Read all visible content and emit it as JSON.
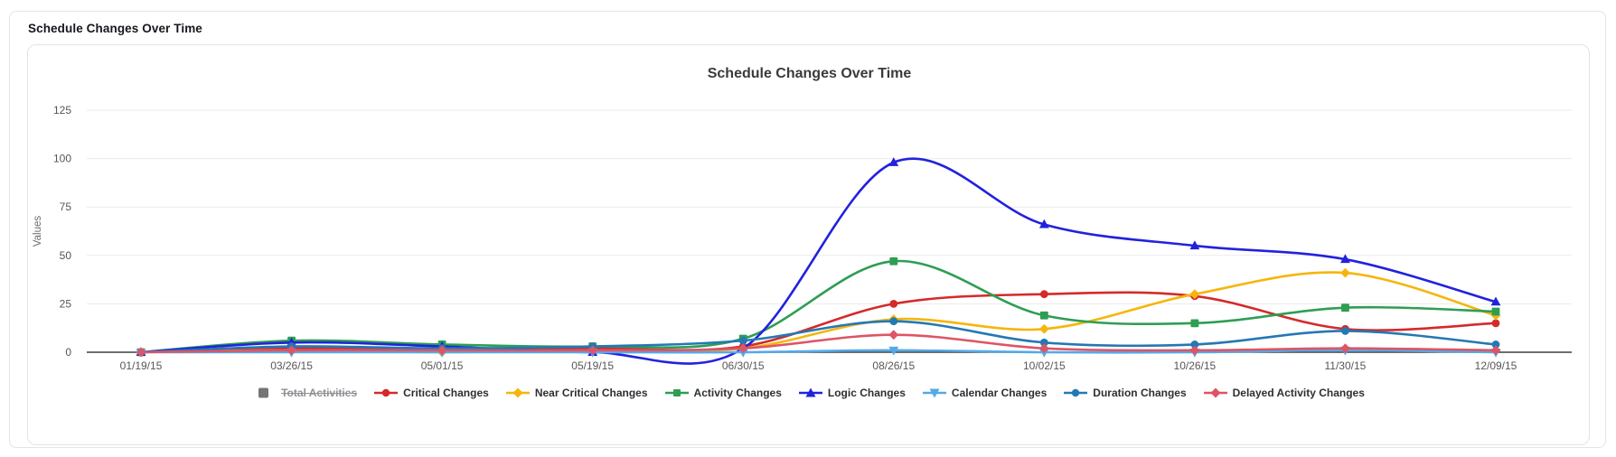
{
  "window": {
    "header_title": "Schedule Changes Over Time"
  },
  "chart_data": {
    "type": "line",
    "title": "Schedule Changes Over Time",
    "xlabel": "",
    "ylabel": "Values",
    "ylim": [
      0,
      125
    ],
    "yticks": [
      0,
      25,
      50,
      75,
      100,
      125
    ],
    "grid": true,
    "legend_position": "bottom",
    "line_style": "smooth",
    "categories": [
      "01/19/15",
      "03/26/15",
      "05/01/15",
      "05/19/15",
      "06/30/15",
      "08/26/15",
      "10/02/15",
      "10/26/15",
      "11/30/15",
      "12/09/15"
    ],
    "series": [
      {
        "name": "Total Activities",
        "color": "#757575",
        "marker": "square",
        "hidden": true,
        "values": []
      },
      {
        "name": "Critical Changes",
        "color": "#d42a2a",
        "marker": "circle",
        "hidden": false,
        "values": [
          0,
          2,
          1,
          2,
          3,
          25,
          30,
          29,
          12,
          15
        ]
      },
      {
        "name": "Near Critical Changes",
        "color": "#f5b60c",
        "marker": "diamond",
        "hidden": false,
        "values": [
          0,
          1,
          0,
          1,
          2,
          17,
          12,
          30,
          41,
          19
        ]
      },
      {
        "name": "Activity Changes",
        "color": "#2e9e53",
        "marker": "square",
        "hidden": false,
        "values": [
          0,
          6,
          4,
          3,
          7,
          47,
          19,
          15,
          23,
          21
        ]
      },
      {
        "name": "Logic Changes",
        "color": "#2222dd",
        "marker": "triangle-up",
        "hidden": false,
        "values": [
          0,
          5,
          3,
          0,
          2,
          98,
          66,
          55,
          48,
          26
        ]
      },
      {
        "name": "Calendar Changes",
        "color": "#54a9e8",
        "marker": "triangle-down",
        "hidden": false,
        "values": [
          0,
          0,
          0,
          0,
          0,
          1,
          0,
          0,
          1,
          0
        ]
      },
      {
        "name": "Duration Changes",
        "color": "#2478b4",
        "marker": "circle",
        "hidden": false,
        "values": [
          0,
          3,
          2,
          3,
          6,
          16,
          5,
          4,
          11,
          4
        ]
      },
      {
        "name": "Delayed Activity Changes",
        "color": "#dd5566",
        "marker": "diamond",
        "hidden": false,
        "values": [
          0,
          1,
          1,
          1,
          2,
          9,
          2,
          1,
          2,
          1
        ]
      }
    ],
    "axis_colors": {
      "grid": "#ebebeb",
      "zero_line": "#3f3f3f",
      "tick_text": "#565656",
      "title_text": "#3a3a3a",
      "axis_title_text": "#6b6b6b"
    }
  }
}
